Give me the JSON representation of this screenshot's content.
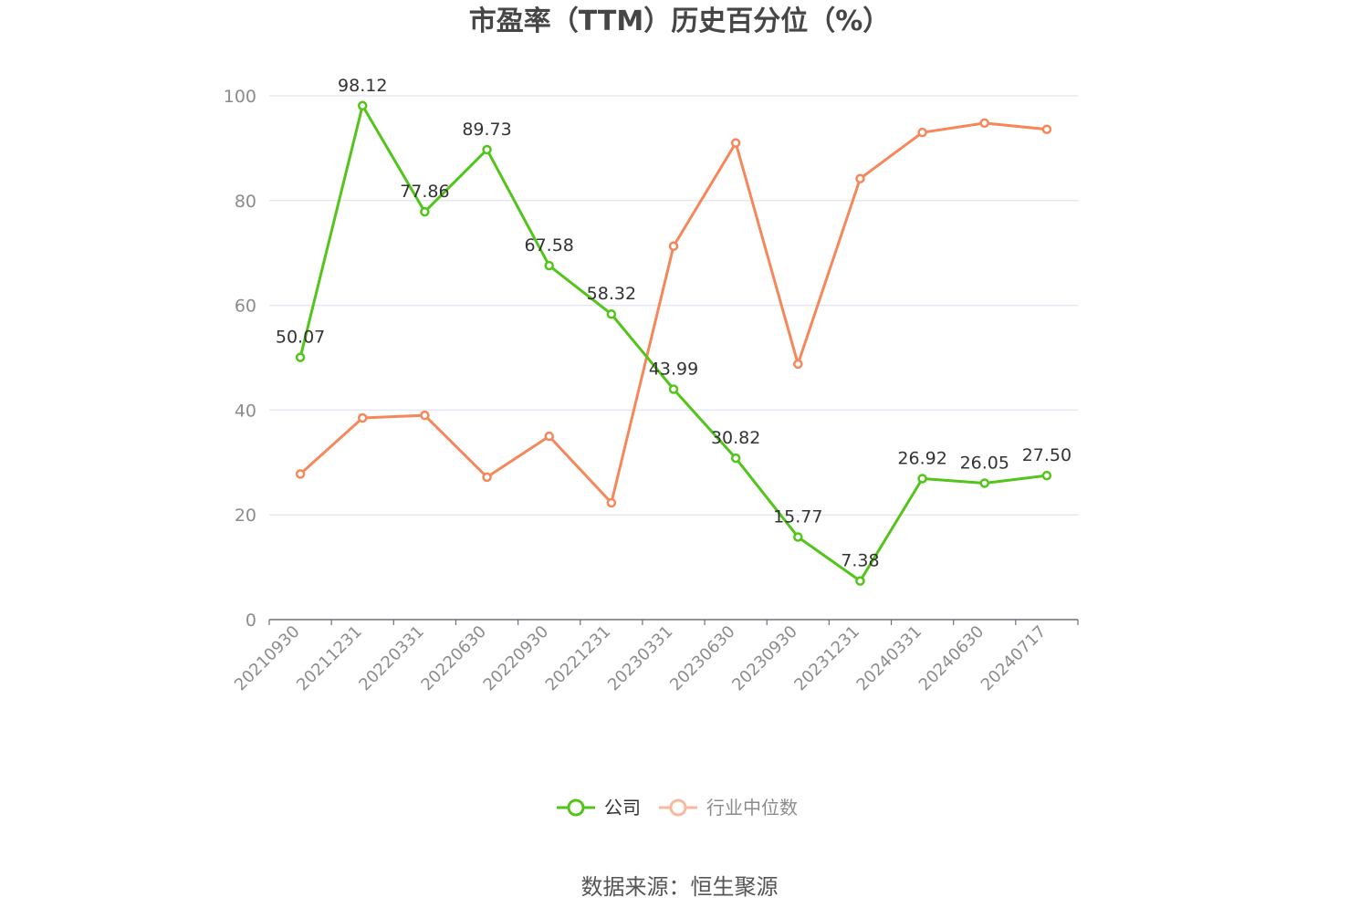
{
  "chart_data": {
    "type": "line",
    "title": "市盈率（TTM）历史百分位（%）",
    "categories": [
      "20210930",
      "20211231",
      "20220331",
      "20220630",
      "20220930",
      "20221231",
      "20230331",
      "20230630",
      "20230930",
      "20231231",
      "20240331",
      "20240630",
      "20240717"
    ],
    "ylim": [
      0,
      100
    ],
    "yticks": [
      0,
      20,
      40,
      60,
      80,
      100
    ],
    "grid": true,
    "legend_position": "bottom",
    "series": [
      {
        "name": "公司",
        "color": "#52c41a",
        "show_labels": true,
        "values": [
          50.07,
          98.12,
          77.86,
          89.73,
          67.58,
          58.32,
          43.99,
          30.82,
          15.77,
          7.38,
          26.92,
          26.05,
          27.5
        ],
        "labels": [
          "50.07",
          "98.12",
          "77.86",
          "89.73",
          "67.58",
          "58.32",
          "43.99",
          "30.82",
          "15.77",
          "7.38",
          "26.92",
          "26.05",
          "27.50"
        ]
      },
      {
        "name": "行业中位数",
        "color": "#f5875a",
        "legend_color": "#f8b99e",
        "show_labels": false,
        "values": [
          27.8,
          38.5,
          39.0,
          27.2,
          35.0,
          22.3,
          71.3,
          91.0,
          48.8,
          84.2,
          93.0,
          94.8,
          93.6
        ]
      }
    ]
  },
  "source_text": "数据来源：恒生聚源"
}
